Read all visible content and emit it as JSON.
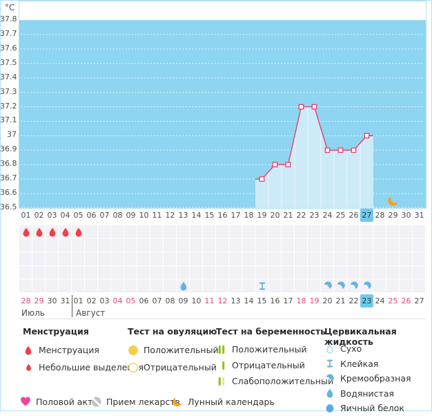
{
  "colors": {
    "chart_bg": "#8ed5f1",
    "chart_border": "#b3e0f4",
    "area_fill": "#cdeaf9",
    "line": "#e73e6e",
    "highlight_bg": "#6fc9ee",
    "weekend_text": "#e9447d",
    "date_text": "#4b4b4b",
    "grid_cell": "#f1f1f6",
    "red": "#ef4049",
    "yellow": "#f4cf4d",
    "green": "#94c00f",
    "pale_green": "#dbe8ab",
    "blue_icon": "#66b2e2",
    "blue_icon_light": "#9fcfec",
    "egg_blue": "#5aabdf",
    "pink": "#f0459b",
    "gray_icon": "#bdc3c9",
    "orange": "#f6a21d"
  },
  "chart_data": {
    "type": "line",
    "title": "",
    "ylabel": "°C",
    "ylim": [
      36.5,
      37.8
    ],
    "y_tick_step": 0.1,
    "y_tick_labels": [
      "37.8",
      "37.7",
      "37.6",
      "37.5",
      "37.4",
      "37.3",
      "37.2",
      "37.1",
      "37",
      "36.9",
      "36.8",
      "36.7",
      "36.6",
      "36.5"
    ],
    "x_range": [
      1,
      31
    ],
    "x_ticks": [
      "01",
      "02",
      "03",
      "04",
      "05",
      "06",
      "07",
      "08",
      "09",
      "10",
      "11",
      "12",
      "13",
      "14",
      "15",
      "16",
      "17",
      "18",
      "19",
      "20",
      "21",
      "22",
      "23",
      "24",
      "25",
      "26",
      "27",
      "28",
      "29",
      "30",
      "31"
    ],
    "grid": "dotted-white-horizontal",
    "area_under_line": true,
    "series": [
      {
        "name": "температура",
        "x": [
          19,
          20,
          21,
          22,
          23,
          24,
          25,
          26,
          27
        ],
        "values": [
          36.7,
          36.8,
          36.8,
          37.2,
          37.2,
          36.9,
          36.9,
          36.9,
          37.0
        ]
      }
    ],
    "annotations": [
      {
        "kind": "moon",
        "x": 29
      }
    ]
  },
  "day_rows": {
    "cycle": {
      "labels": [
        "01",
        "02",
        "03",
        "04",
        "05",
        "06",
        "07",
        "08",
        "09",
        "10",
        "11",
        "12",
        "13",
        "14",
        "15",
        "16",
        "17",
        "18",
        "19",
        "20",
        "21",
        "22",
        "23",
        "24",
        "25",
        "26",
        "27",
        "28",
        "29",
        "30",
        "31"
      ],
      "today": "27"
    },
    "calendar": {
      "labels": [
        "28",
        "29",
        "30",
        "31",
        "01",
        "02",
        "03",
        "04",
        "05",
        "06",
        "07",
        "08",
        "09",
        "10",
        "11",
        "12",
        "13",
        "14",
        "15",
        "16",
        "17",
        "18",
        "19",
        "20",
        "21",
        "22",
        "23",
        "24",
        "25",
        "26",
        "27"
      ],
      "weekends": [
        "28",
        "29",
        "04",
        "05",
        "11",
        "12",
        "18",
        "19",
        "25",
        "26"
      ],
      "today": "23"
    },
    "months": [
      {
        "label": "Июль",
        "start_column": 1
      },
      {
        "label": "Август",
        "start_column": 5
      }
    ],
    "divider_after_column": 4
  },
  "event_grid": {
    "rows": 5,
    "columns": 31,
    "events": [
      {
        "row": 1,
        "column": 1,
        "kind": "menstruation"
      },
      {
        "row": 1,
        "column": 2,
        "kind": "menstruation"
      },
      {
        "row": 1,
        "column": 3,
        "kind": "menstruation"
      },
      {
        "row": 1,
        "column": 4,
        "kind": "menstruation"
      },
      {
        "row": 1,
        "column": 5,
        "kind": "menstruation"
      },
      {
        "row": 5,
        "column": 13,
        "kind": "watery"
      },
      {
        "row": 5,
        "column": 19,
        "kind": "sticky"
      },
      {
        "row": 5,
        "column": 24,
        "kind": "creamy"
      },
      {
        "row": 5,
        "column": 25,
        "kind": "creamy"
      },
      {
        "row": 5,
        "column": 26,
        "kind": "creamy"
      },
      {
        "row": 5,
        "column": 27,
        "kind": "creamy"
      }
    ]
  },
  "legend": {
    "sections": [
      {
        "title": "Менструация",
        "items": [
          {
            "icon": "menstruation",
            "label": "Менструация"
          },
          {
            "icon": "spotting",
            "label": "Небольшие выделения"
          }
        ]
      },
      {
        "title": "Тест на овуляцию",
        "items": [
          {
            "icon": "ovu-pos",
            "label": "Положительный"
          },
          {
            "icon": "ovu-neg",
            "label": "Отрицательный"
          }
        ]
      },
      {
        "title": "Тест на беременность",
        "items": [
          {
            "icon": "preg-pos",
            "label": "Положительный"
          },
          {
            "icon": "preg-neg",
            "label": "Отрицательный"
          },
          {
            "icon": "preg-weak",
            "label": "Слабоположительный"
          }
        ]
      },
      {
        "title": "Цервикальная жидкость",
        "items": [
          {
            "icon": "dry",
            "label": "Сухо"
          },
          {
            "icon": "sticky",
            "label": "Клейкая"
          },
          {
            "icon": "creamy",
            "label": "Кремообразная"
          },
          {
            "icon": "watery",
            "label": "Водянистая"
          },
          {
            "icon": "eggwhite",
            "label": "Яичный белок"
          }
        ]
      }
    ],
    "footer_items": [
      {
        "icon": "sex",
        "label": "Половой акт"
      },
      {
        "icon": "meds",
        "label": "Прием лекарств"
      },
      {
        "icon": "moon",
        "label": "Лунный календарь"
      }
    ]
  }
}
